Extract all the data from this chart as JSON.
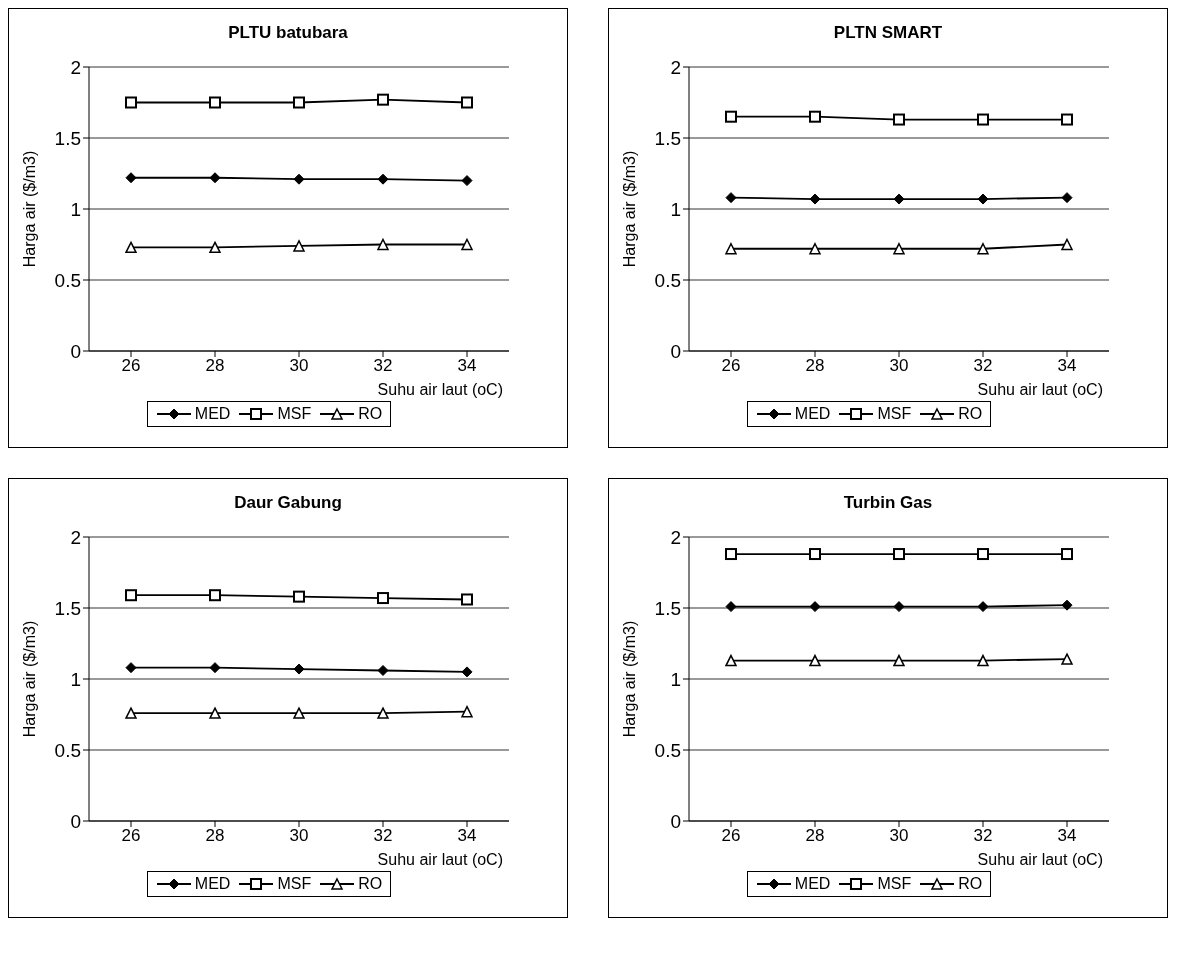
{
  "chart_data": [
    {
      "type": "line",
      "title": "PLTU batubara",
      "xlabel": "Suhu air laut (oC)",
      "ylabel": "Harga air ($/m3)",
      "x": [
        26,
        28,
        30,
        32,
        34
      ],
      "xlim": [
        25,
        35
      ],
      "xticks": [
        26,
        28,
        30,
        32,
        34
      ],
      "ylim": [
        0,
        2
      ],
      "yticks": [
        0,
        0.5,
        1,
        1.5,
        2
      ],
      "grid": "y",
      "legend": "bottom",
      "line_style": "solid",
      "series": [
        {
          "name": "MED",
          "color": "#000000",
          "marker": "diamond",
          "values": [
            1.22,
            1.22,
            1.21,
            1.21,
            1.2
          ]
        },
        {
          "name": "MSF",
          "color": "#000000",
          "marker": "square",
          "values": [
            1.75,
            1.75,
            1.75,
            1.77,
            1.75
          ]
        },
        {
          "name": "RO",
          "color": "#000000",
          "marker": "triangle",
          "values": [
            0.73,
            0.73,
            0.74,
            0.75,
            0.75
          ]
        }
      ]
    },
    {
      "type": "line",
      "title": "PLTN SMART",
      "xlabel": "Suhu air laut (oC)",
      "ylabel": "Harga air ($/m3)",
      "x": [
        26,
        28,
        30,
        32,
        34
      ],
      "xlim": [
        25,
        35
      ],
      "xticks": [
        26,
        28,
        30,
        32,
        34
      ],
      "ylim": [
        0,
        2
      ],
      "yticks": [
        0,
        0.5,
        1,
        1.5,
        2
      ],
      "grid": "y",
      "legend": "bottom",
      "line_style": "solid",
      "series": [
        {
          "name": "MED",
          "color": "#000000",
          "marker": "diamond",
          "values": [
            1.08,
            1.07,
            1.07,
            1.07,
            1.08
          ]
        },
        {
          "name": "MSF",
          "color": "#000000",
          "marker": "square",
          "values": [
            1.65,
            1.65,
            1.63,
            1.63,
            1.63
          ]
        },
        {
          "name": "RO",
          "color": "#000000",
          "marker": "triangle",
          "values": [
            0.72,
            0.72,
            0.72,
            0.72,
            0.75
          ]
        }
      ]
    },
    {
      "type": "line",
      "title": "Daur Gabung",
      "xlabel": "Suhu air laut (oC)",
      "ylabel": "Harga air ($/m3)",
      "x": [
        26,
        28,
        30,
        32,
        34
      ],
      "xlim": [
        25,
        35
      ],
      "xticks": [
        26,
        28,
        30,
        32,
        34
      ],
      "ylim": [
        0,
        2
      ],
      "yticks": [
        0,
        0.5,
        1,
        1.5,
        2
      ],
      "grid": "y",
      "legend": "bottom",
      "line_style": "solid",
      "series": [
        {
          "name": "MED",
          "color": "#000000",
          "marker": "diamond",
          "values": [
            1.08,
            1.08,
            1.07,
            1.06,
            1.05
          ]
        },
        {
          "name": "MSF",
          "color": "#000000",
          "marker": "square",
          "values": [
            1.59,
            1.59,
            1.58,
            1.57,
            1.56
          ]
        },
        {
          "name": "RO",
          "color": "#000000",
          "marker": "triangle",
          "values": [
            0.76,
            0.76,
            0.76,
            0.76,
            0.77
          ]
        }
      ]
    },
    {
      "type": "line",
      "title": "Turbin Gas",
      "xlabel": "Suhu air laut (oC)",
      "ylabel": "Harga air ($/m3)",
      "x": [
        26,
        28,
        30,
        32,
        34
      ],
      "xlim": [
        25,
        35
      ],
      "xticks": [
        26,
        28,
        30,
        32,
        34
      ],
      "ylim": [
        0,
        2
      ],
      "yticks": [
        0,
        0.5,
        1,
        1.5,
        2
      ],
      "grid": "y",
      "legend": "bottom",
      "line_style": "solid",
      "series": [
        {
          "name": "MED",
          "color": "#000000",
          "marker": "diamond",
          "values": [
            1.51,
            1.51,
            1.51,
            1.51,
            1.52
          ]
        },
        {
          "name": "MSF",
          "color": "#000000",
          "marker": "square",
          "values": [
            1.88,
            1.88,
            1.88,
            1.88,
            1.88
          ]
        },
        {
          "name": "RO",
          "color": "#000000",
          "marker": "triangle",
          "values": [
            1.13,
            1.13,
            1.13,
            1.13,
            1.14
          ]
        }
      ]
    }
  ]
}
